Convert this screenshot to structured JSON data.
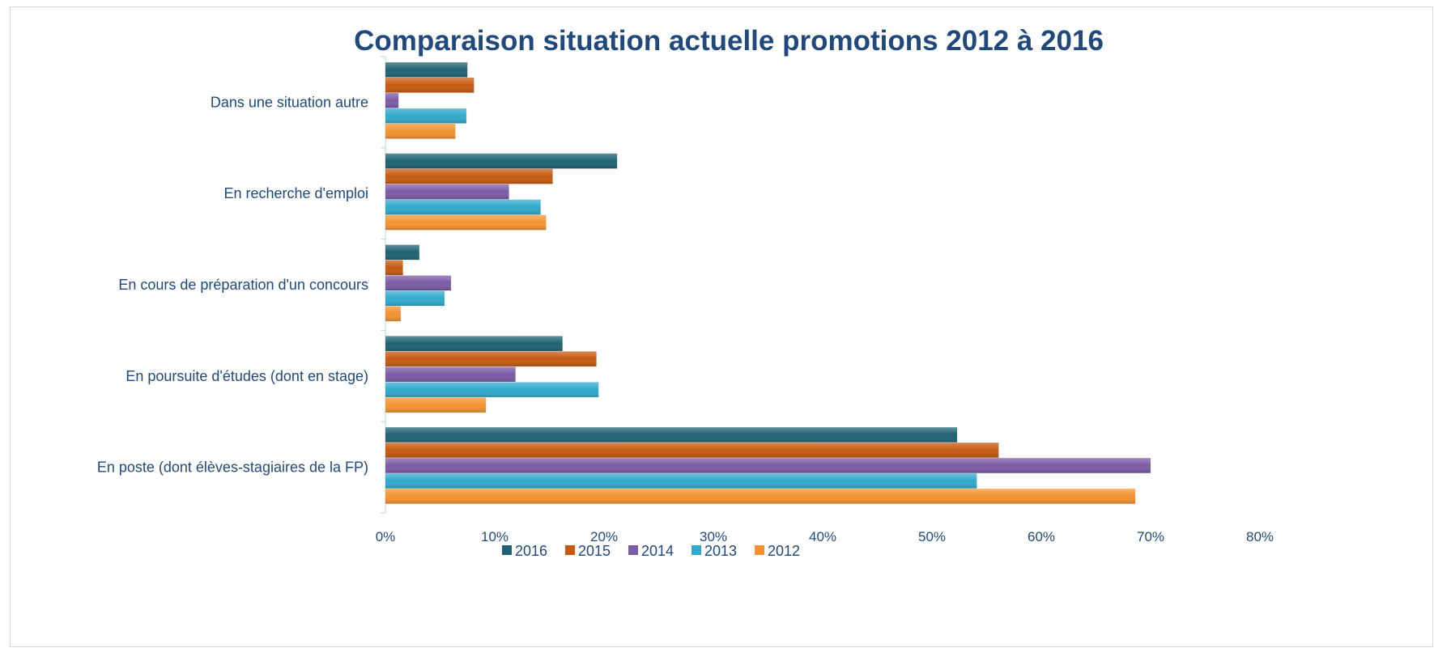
{
  "chart_data": {
    "type": "bar",
    "orientation": "horizontal",
    "title": "Comparaison situation actuelle promotions 2012 à 2016",
    "categories": [
      "Dans une situation autre",
      "En recherche d'emploi",
      "En cours de préparation d'un concours",
      "En poursuite d'études (dont en stage)",
      "En poste (dont élèves-stagiaires de la FP)"
    ],
    "series": [
      {
        "name": "2016",
        "color": "#1f6373",
        "values": [
          7.5,
          21.2,
          3.1,
          16.2,
          52.3
        ]
      },
      {
        "name": "2015",
        "color": "#c55a11",
        "values": [
          8.1,
          15.3,
          1.6,
          19.3,
          56.1
        ]
      },
      {
        "name": "2014",
        "color": "#7b5ba6",
        "values": [
          1.2,
          11.3,
          6.0,
          11.9,
          70.0
        ]
      },
      {
        "name": "2013",
        "color": "#31a9cc",
        "values": [
          7.4,
          14.2,
          5.4,
          19.5,
          54.1
        ]
      },
      {
        "name": "2012",
        "color": "#f3922f",
        "values": [
          6.4,
          14.7,
          1.4,
          9.2,
          68.6
        ]
      }
    ],
    "xlim": [
      0,
      80
    ],
    "xticks": [
      "0%",
      "10%",
      "20%",
      "30%",
      "40%",
      "50%",
      "60%",
      "70%",
      "80%"
    ],
    "xlabel": "",
    "ylabel": "",
    "grid": false,
    "legend_position": "bottom"
  }
}
